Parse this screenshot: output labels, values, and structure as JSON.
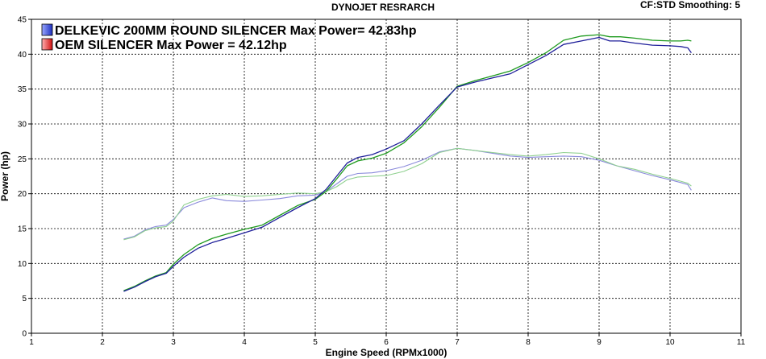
{
  "header": {
    "title": "DYNOJET RESRARCH",
    "settings": "CF:STD Smoothing: 5"
  },
  "chart_data": {
    "type": "line",
    "xlabel": "Engine Speed (RPMx1000)",
    "ylabel": "Power (hp)",
    "xlim": [
      1,
      11
    ],
    "ylim": [
      0,
      45
    ],
    "xticks": [
      1,
      2,
      3,
      4,
      5,
      6,
      7,
      8,
      9,
      10,
      11
    ],
    "yticks": [
      0,
      5,
      10,
      15,
      20,
      25,
      30,
      35,
      40,
      45
    ],
    "grid": true,
    "legend": [
      {
        "label": "DELKEVIC 200MM ROUND SILENCER Max Power= 42.83hp",
        "color": "#2f3fd0"
      },
      {
        "label": "OEM SILENCER Max Power = 42.12hp",
        "color": "#e02020"
      }
    ],
    "series": [
      {
        "color": "#1f1f9a",
        "width": 1.3,
        "points": [
          [
            2.3,
            6
          ],
          [
            2.45,
            6.6
          ],
          [
            2.6,
            7.4
          ],
          [
            2.75,
            8.1
          ],
          [
            2.9,
            8.6
          ],
          [
            3.0,
            9.6
          ],
          [
            3.15,
            10.9
          ],
          [
            3.35,
            12.2
          ],
          [
            3.55,
            13.0
          ],
          [
            3.75,
            13.6
          ],
          [
            4.0,
            14.4
          ],
          [
            4.25,
            15.2
          ],
          [
            4.5,
            16.6
          ],
          [
            4.75,
            18.0
          ],
          [
            5.0,
            19.3
          ],
          [
            5.15,
            20.6
          ],
          [
            5.3,
            22.5
          ],
          [
            5.45,
            24.4
          ],
          [
            5.6,
            25.2
          ],
          [
            5.8,
            25.6
          ],
          [
            6.0,
            26.4
          ],
          [
            6.25,
            27.6
          ],
          [
            6.5,
            30.0
          ],
          [
            6.75,
            32.7
          ],
          [
            7.0,
            35.3
          ],
          [
            7.25,
            36.0
          ],
          [
            7.5,
            36.6
          ],
          [
            7.75,
            37.2
          ],
          [
            8.0,
            38.5
          ],
          [
            8.25,
            39.8
          ],
          [
            8.5,
            41.4
          ],
          [
            8.75,
            41.9
          ],
          [
            9.0,
            42.4
          ],
          [
            9.15,
            41.9
          ],
          [
            9.3,
            41.9
          ],
          [
            9.5,
            41.6
          ],
          [
            9.75,
            41.3
          ],
          [
            10.0,
            41.2
          ],
          [
            10.15,
            41.1
          ],
          [
            10.25,
            40.9
          ],
          [
            10.3,
            40.2
          ]
        ]
      },
      {
        "color": "#1e9a1e",
        "width": 1.3,
        "points": [
          [
            2.3,
            6.1
          ],
          [
            2.45,
            6.7
          ],
          [
            2.6,
            7.5
          ],
          [
            2.75,
            8.2
          ],
          [
            2.9,
            8.7
          ],
          [
            3.0,
            9.9
          ],
          [
            3.15,
            11.3
          ],
          [
            3.35,
            12.7
          ],
          [
            3.55,
            13.6
          ],
          [
            3.75,
            14.2
          ],
          [
            4.0,
            14.9
          ],
          [
            4.25,
            15.5
          ],
          [
            4.5,
            16.9
          ],
          [
            4.75,
            18.3
          ],
          [
            5.0,
            19.2
          ],
          [
            5.15,
            20.3
          ],
          [
            5.3,
            22.1
          ],
          [
            5.45,
            24.0
          ],
          [
            5.6,
            24.7
          ],
          [
            5.8,
            25.1
          ],
          [
            6.0,
            25.8
          ],
          [
            6.25,
            27.3
          ],
          [
            6.5,
            29.6
          ],
          [
            6.75,
            32.4
          ],
          [
            7.0,
            35.4
          ],
          [
            7.25,
            36.2
          ],
          [
            7.5,
            36.9
          ],
          [
            7.75,
            37.6
          ],
          [
            8.0,
            38.8
          ],
          [
            8.25,
            40.2
          ],
          [
            8.5,
            42.0
          ],
          [
            8.75,
            42.6
          ],
          [
            9.0,
            42.8
          ],
          [
            9.15,
            42.5
          ],
          [
            9.3,
            42.5
          ],
          [
            9.5,
            42.3
          ],
          [
            9.75,
            42.0
          ],
          [
            10.0,
            41.9
          ],
          [
            10.15,
            41.9
          ],
          [
            10.25,
            42.0
          ],
          [
            10.3,
            41.9
          ]
        ]
      },
      {
        "color": "#8a8adb",
        "width": 1.1,
        "points": [
          [
            2.3,
            13.5
          ],
          [
            2.45,
            13.9
          ],
          [
            2.6,
            14.8
          ],
          [
            2.75,
            15.3
          ],
          [
            2.9,
            15.5
          ],
          [
            3.0,
            16.3
          ],
          [
            3.15,
            18.0
          ],
          [
            3.35,
            18.8
          ],
          [
            3.55,
            19.4
          ],
          [
            3.75,
            19.0
          ],
          [
            4.0,
            18.9
          ],
          [
            4.25,
            19.1
          ],
          [
            4.5,
            19.3
          ],
          [
            4.75,
            19.7
          ],
          [
            5.0,
            19.8
          ],
          [
            5.15,
            20.3
          ],
          [
            5.3,
            21.4
          ],
          [
            5.45,
            22.5
          ],
          [
            5.6,
            22.9
          ],
          [
            5.8,
            23.0
          ],
          [
            6.0,
            23.3
          ],
          [
            6.25,
            23.9
          ],
          [
            6.5,
            24.8
          ],
          [
            6.75,
            26.0
          ],
          [
            7.0,
            26.5
          ],
          [
            7.25,
            26.2
          ],
          [
            7.5,
            25.8
          ],
          [
            7.75,
            25.4
          ],
          [
            8.0,
            25.2
          ],
          [
            8.25,
            25.3
          ],
          [
            8.5,
            25.4
          ],
          [
            8.75,
            25.3
          ],
          [
            9.0,
            24.8
          ],
          [
            9.25,
            24.0
          ],
          [
            9.5,
            23.3
          ],
          [
            9.75,
            22.6
          ],
          [
            10.0,
            22.0
          ],
          [
            10.15,
            21.6
          ],
          [
            10.25,
            21.3
          ],
          [
            10.3,
            20.5
          ]
        ]
      },
      {
        "color": "#8fd08f",
        "width": 1.1,
        "points": [
          [
            2.3,
            13.4
          ],
          [
            2.45,
            13.8
          ],
          [
            2.6,
            14.7
          ],
          [
            2.75,
            15.1
          ],
          [
            2.9,
            15.3
          ],
          [
            3.0,
            16.1
          ],
          [
            3.15,
            18.4
          ],
          [
            3.35,
            19.2
          ],
          [
            3.55,
            19.7
          ],
          [
            3.75,
            19.9
          ],
          [
            4.0,
            19.6
          ],
          [
            4.25,
            19.7
          ],
          [
            4.5,
            19.9
          ],
          [
            4.75,
            20.1
          ],
          [
            5.0,
            20.0
          ],
          [
            5.15,
            20.3
          ],
          [
            5.3,
            21.0
          ],
          [
            5.45,
            22.0
          ],
          [
            5.6,
            22.4
          ],
          [
            5.8,
            22.5
          ],
          [
            6.0,
            22.6
          ],
          [
            6.25,
            23.2
          ],
          [
            6.5,
            24.3
          ],
          [
            6.75,
            25.9
          ],
          [
            7.0,
            26.5
          ],
          [
            7.25,
            26.2
          ],
          [
            7.5,
            25.9
          ],
          [
            7.75,
            25.6
          ],
          [
            8.0,
            25.4
          ],
          [
            8.25,
            25.6
          ],
          [
            8.5,
            25.9
          ],
          [
            8.75,
            25.8
          ],
          [
            9.0,
            25.0
          ],
          [
            9.25,
            24.0
          ],
          [
            9.5,
            23.5
          ],
          [
            9.75,
            22.8
          ],
          [
            10.0,
            22.2
          ],
          [
            10.15,
            21.8
          ],
          [
            10.25,
            21.5
          ],
          [
            10.3,
            21.1
          ]
        ]
      }
    ]
  }
}
